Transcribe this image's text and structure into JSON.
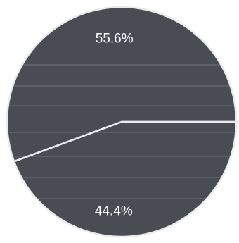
{
  "chart_data": {
    "type": "pie",
    "slices": [
      {
        "value": 55.6,
        "label": "55.6%"
      },
      {
        "value": 44.4,
        "label": "44.4%"
      }
    ],
    "legend": "none",
    "title": "",
    "colors": {
      "slice_fill": "#4a4c53",
      "border": "#e8ecef",
      "texture_line": "#8a8d94"
    }
  }
}
